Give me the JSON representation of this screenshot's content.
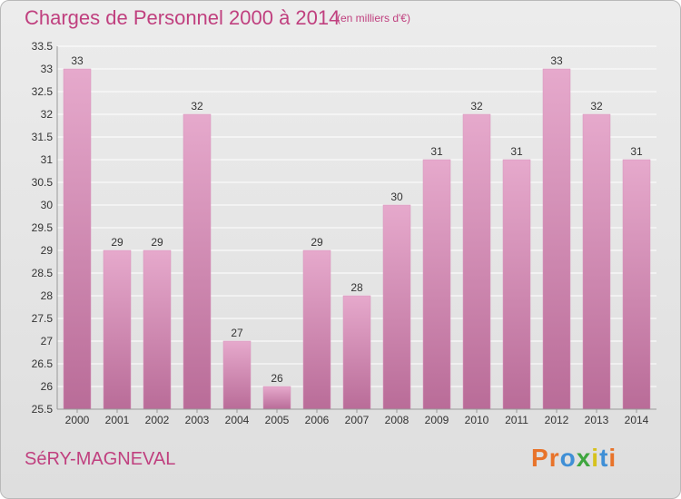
{
  "header": {
    "title": "Charges de Personnel 2000 à 2014",
    "subtitle": "(en milliers d'€)"
  },
  "footer": {
    "commune": "SéRY-MAGNEVAL",
    "logo_letters": [
      "P",
      "r",
      "o",
      "x",
      "i",
      "t",
      "i"
    ],
    "logo_colors": [
      "#e8732a",
      "#e8732a",
      "#3f8fd6",
      "#3fa63f",
      "#d6c21e",
      "#3f8fd6",
      "#e8732a"
    ]
  },
  "colors": {
    "bar_light": "#e6a9cc",
    "bar_dark": "#b96c98",
    "grid": "#ffffff",
    "axis_text": "#333333"
  },
  "chart_data": {
    "type": "bar",
    "title": "Charges de Personnel 2000 à 2014",
    "subtitle": "(en milliers d'€)",
    "categories": [
      "2000",
      "2001",
      "2002",
      "2003",
      "2004",
      "2005",
      "2006",
      "2007",
      "2008",
      "2009",
      "2010",
      "2011",
      "2012",
      "2013",
      "2014"
    ],
    "values": [
      33,
      29,
      29,
      32,
      27,
      26,
      29,
      28,
      30,
      31,
      32,
      31,
      33,
      32,
      31
    ],
    "data_labels": [
      "33",
      "29",
      "29",
      "32",
      "27",
      "26",
      "29",
      "28",
      "30",
      "31",
      "32",
      "31",
      "33",
      "32",
      "31"
    ],
    "yticks": [
      "25.5",
      "26",
      "26.5",
      "27",
      "27.5",
      "28",
      "28.5",
      "29",
      "29.5",
      "30",
      "30.5",
      "31",
      "31.5",
      "32",
      "32.5",
      "33",
      "33.5"
    ],
    "ylim": [
      25.5,
      33.5
    ],
    "grid": true,
    "legend": "none"
  }
}
